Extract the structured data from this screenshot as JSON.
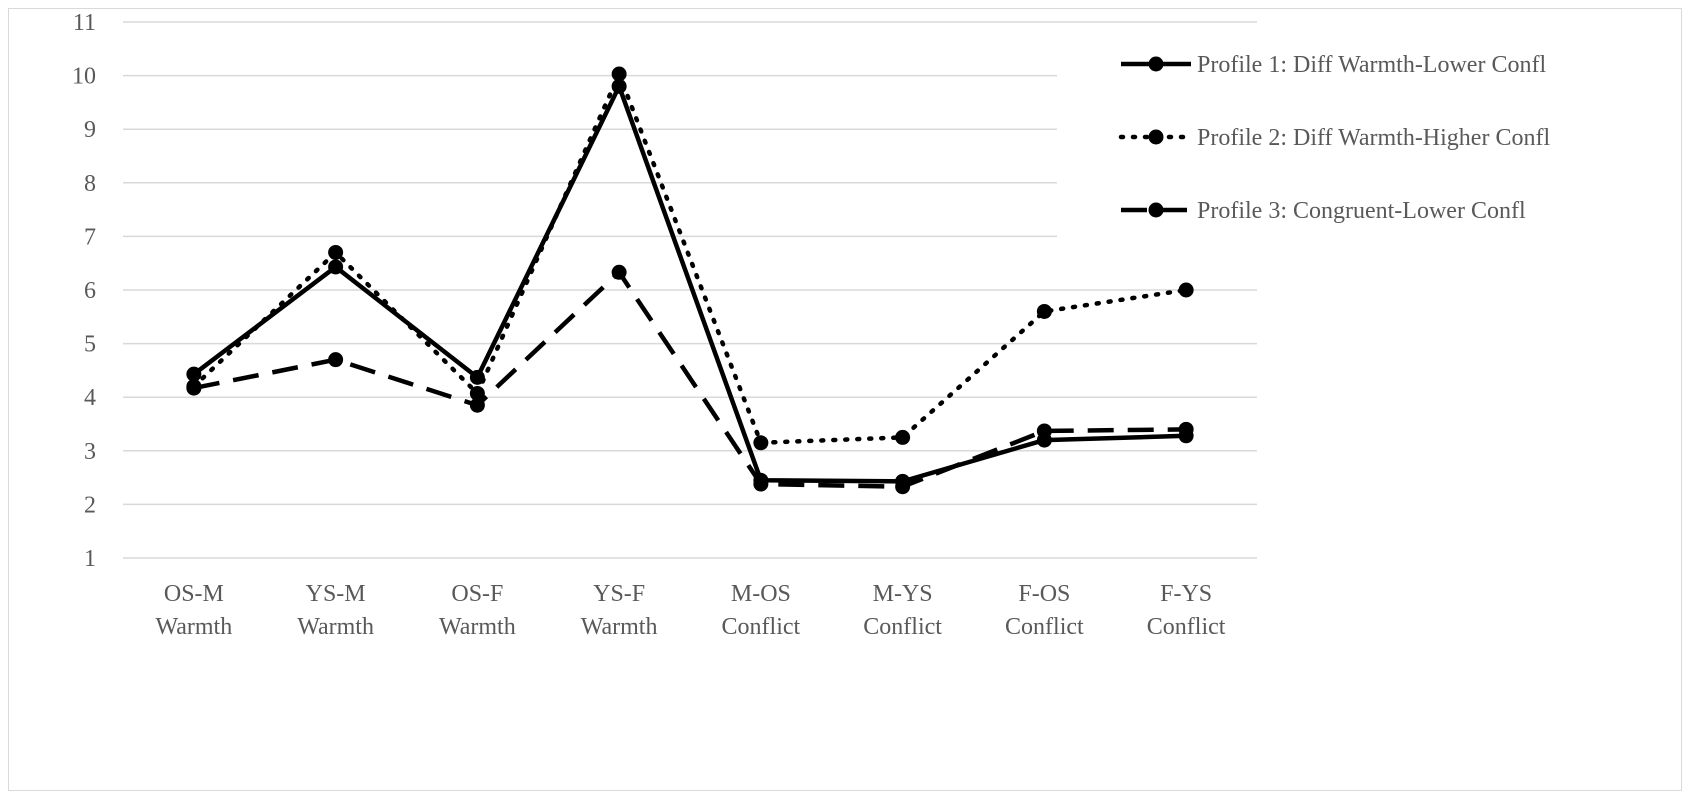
{
  "chart_data": {
    "type": "line",
    "title": "",
    "xlabel": "",
    "ylabel": "",
    "ylim": [
      1,
      11
    ],
    "yticks": [
      1,
      2,
      3,
      4,
      5,
      6,
      7,
      8,
      9,
      10,
      11
    ],
    "grid": true,
    "legend_position": "right",
    "categories": [
      [
        "OS-M",
        "Warmth"
      ],
      [
        "YS-M",
        "Warmth"
      ],
      [
        "OS-F",
        "Warmth"
      ],
      [
        "YS-F",
        "Warmth"
      ],
      [
        "M-OS",
        "Conflict"
      ],
      [
        "M-YS",
        "Conflict"
      ],
      [
        "F-OS",
        "Conflict"
      ],
      [
        "F-YS",
        "Conflict"
      ]
    ],
    "series": [
      {
        "name": "Profile 1: Diff Warmth-Lower Confl",
        "style": "solid",
        "color": "#000000",
        "values": [
          4.43,
          6.43,
          4.37,
          9.8,
          2.45,
          2.43,
          3.2,
          3.28
        ]
      },
      {
        "name": "Profile 2: Diff Warmth-Higher Confl",
        "style": "dotted",
        "color": "#000000",
        "values": [
          4.2,
          6.7,
          4.07,
          10.03,
          3.15,
          3.25,
          5.6,
          6.0
        ]
      },
      {
        "name": "Profile 3: Congruent-Lower Confl",
        "style": "dashed",
        "color": "#000000",
        "values": [
          4.17,
          4.7,
          3.85,
          6.33,
          2.38,
          2.33,
          3.37,
          3.4
        ]
      }
    ]
  }
}
